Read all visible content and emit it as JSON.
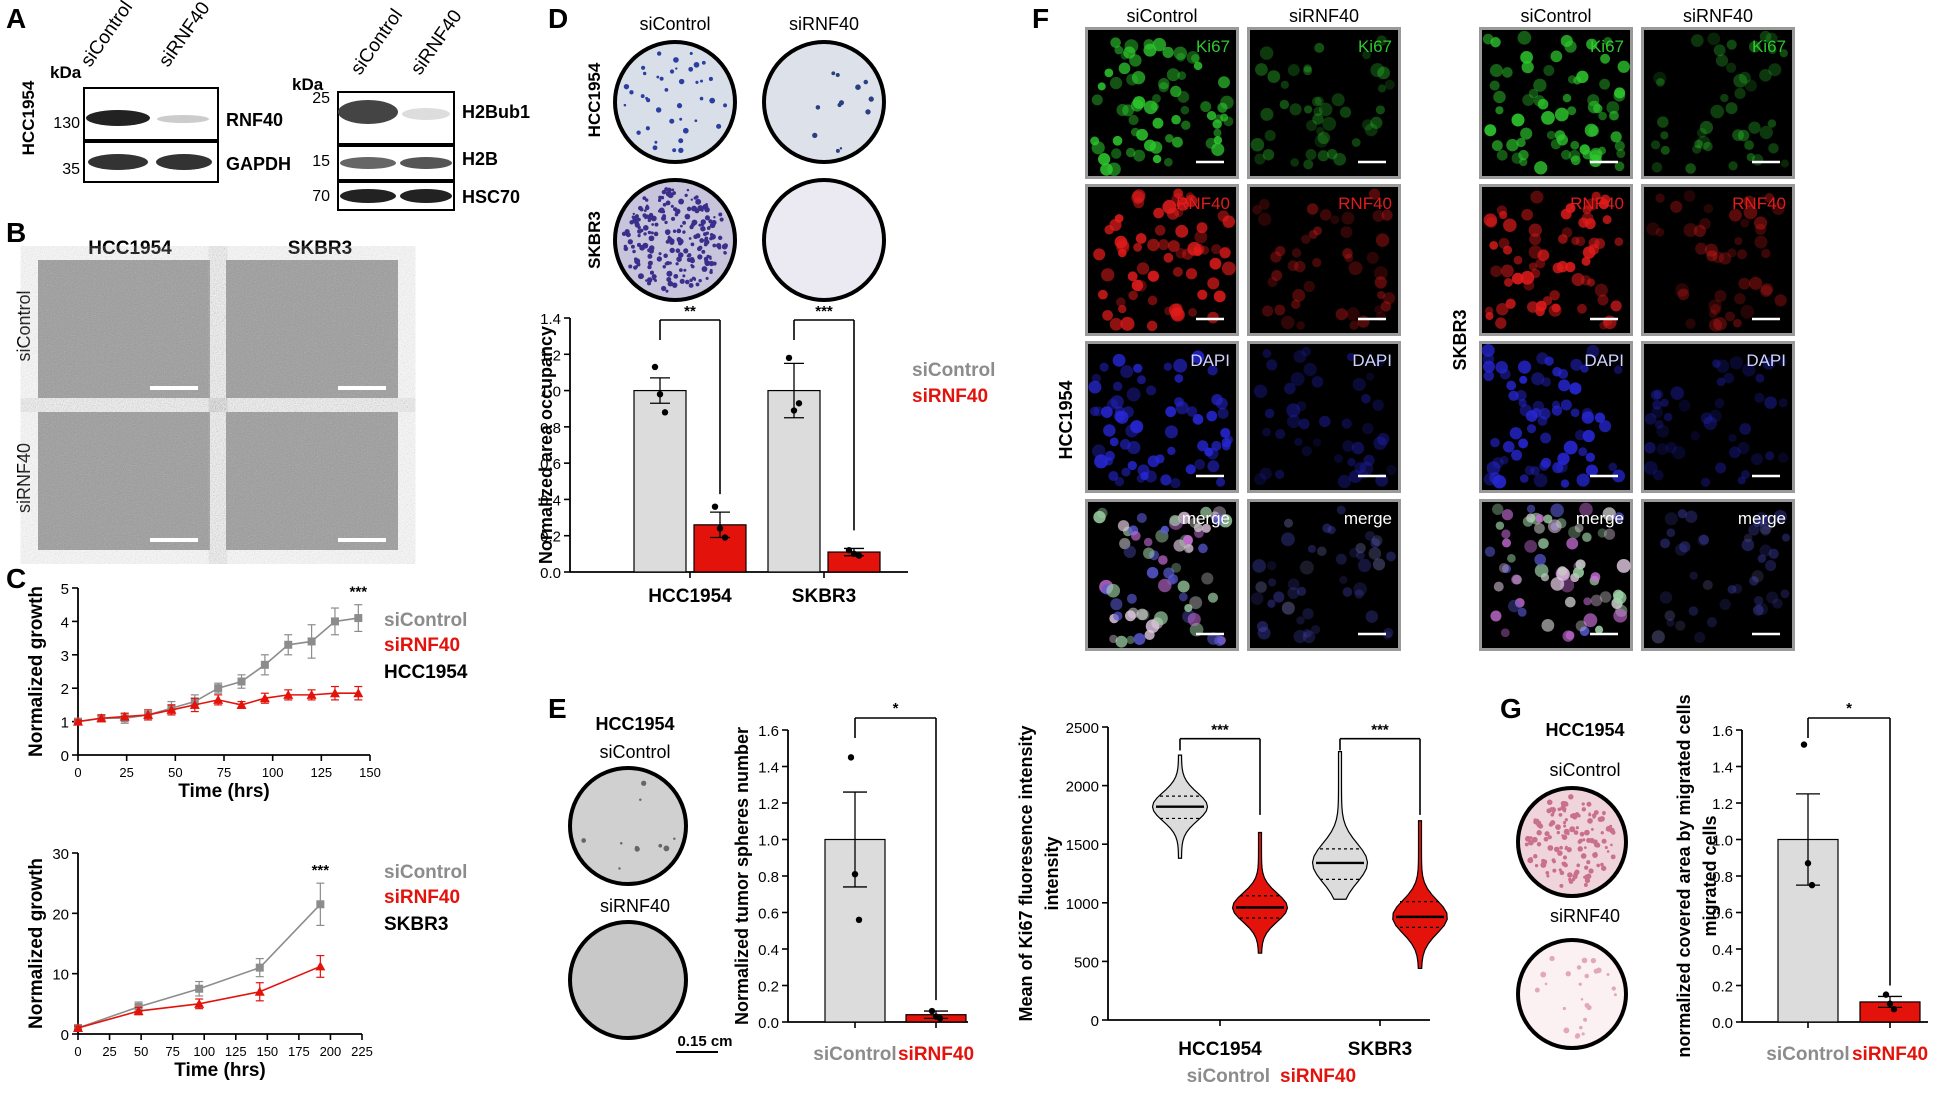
{
  "colors": {
    "control": "#8c8c8c",
    "knock": "#e3120b",
    "bar_control": "#dcdcdc",
    "bar_knock": "#e3120b",
    "ki67": "#2ec82e",
    "rnf40": "#e21b1b",
    "dapi": "#2727d8"
  },
  "panels": {
    "A": "A",
    "B": "B",
    "C": "C",
    "D": "D",
    "E": "E",
    "F": "F",
    "G": "G"
  },
  "A": {
    "lanes": [
      "siControl",
      "siRNF40"
    ],
    "kda": "kDa",
    "cell_line": "HCC1954",
    "blot1": {
      "bands": [
        "RNF40",
        "GAPDH"
      ],
      "markers": [
        "130",
        "35"
      ]
    },
    "blot2": {
      "bands": [
        "H2Bub1",
        "H2B",
        "HSC70"
      ],
      "markers": [
        "25",
        "15",
        "70"
      ]
    }
  },
  "B": {
    "cols": [
      "HCC1954",
      "SKBR3"
    ],
    "rows": [
      "siControl",
      "siRNF40"
    ]
  },
  "D": {
    "cols": [
      "siControl",
      "siRNF40"
    ],
    "rows": [
      "HCC1954",
      "SKBR3"
    ]
  },
  "E": {
    "title": "HCC1954",
    "top": "siControl",
    "bottom": "siRNF40",
    "scale": "0.15 cm"
  },
  "F": {
    "cols": [
      "siControl",
      "siRNF40",
      "siControl",
      "siRNF40"
    ],
    "rows": [
      "Ki67",
      "RNF40",
      "DAPI",
      "merge"
    ],
    "lines": [
      "HCC1954",
      "SKBR3"
    ]
  },
  "G": {
    "title": "HCC1954",
    "top": "siControl",
    "bottom": "siRNF40"
  },
  "chart_data": [
    {
      "id": "C1",
      "type": "line",
      "xlabel": "Time (hrs)",
      "ylabel": "Normalized growth",
      "xlim": [
        0,
        150
      ],
      "ylim": [
        0,
        5
      ],
      "xticks": [
        0,
        25,
        50,
        75,
        100,
        125,
        150
      ],
      "yticks": [
        0,
        1,
        2,
        3,
        4,
        5
      ],
      "legend": [
        "siControl",
        "siRNF40",
        "HCC1954"
      ],
      "annotation": "***",
      "series": [
        {
          "name": "siControl",
          "x": [
            0,
            12,
            24,
            36,
            48,
            60,
            72,
            84,
            96,
            108,
            120,
            132,
            144
          ],
          "y": [
            1.0,
            1.1,
            1.1,
            1.2,
            1.4,
            1.6,
            2.0,
            2.2,
            2.7,
            3.3,
            3.4,
            4.0,
            4.1
          ],
          "err": [
            0.08,
            0.1,
            0.15,
            0.15,
            0.2,
            0.2,
            0.15,
            0.2,
            0.3,
            0.3,
            0.5,
            0.4,
            0.4
          ]
        },
        {
          "name": "siRNF40",
          "x": [
            0,
            12,
            24,
            36,
            48,
            60,
            72,
            84,
            96,
            108,
            120,
            132,
            144
          ],
          "y": [
            1.0,
            1.1,
            1.15,
            1.2,
            1.35,
            1.5,
            1.65,
            1.5,
            1.7,
            1.8,
            1.8,
            1.85,
            1.85
          ],
          "err": [
            0.05,
            0.1,
            0.1,
            0.15,
            0.15,
            0.2,
            0.15,
            0.1,
            0.15,
            0.15,
            0.15,
            0.2,
            0.2
          ]
        }
      ]
    },
    {
      "id": "C2",
      "type": "line",
      "xlabel": "Time (hrs)",
      "ylabel": "Normalized growth",
      "xlim": [
        0,
        225
      ],
      "ylim": [
        0,
        30
      ],
      "xticks": [
        0,
        25,
        50,
        75,
        100,
        125,
        150,
        175,
        200,
        225
      ],
      "yticks": [
        0,
        10,
        20,
        30
      ],
      "legend": [
        "siControl",
        "siRNF40",
        "SKBR3"
      ],
      "annotation": "***",
      "series": [
        {
          "name": "siControl",
          "x": [
            0,
            48,
            96,
            144,
            192
          ],
          "y": [
            1,
            4.5,
            7.5,
            11,
            21.5
          ],
          "err": [
            0.3,
            0.8,
            1.2,
            1.5,
            3.5
          ]
        },
        {
          "name": "siRNF40",
          "x": [
            0,
            48,
            96,
            144,
            192
          ],
          "y": [
            1,
            3.8,
            5,
            7,
            11.2
          ],
          "err": [
            0.3,
            0.6,
            0.8,
            1.5,
            1.8
          ]
        }
      ]
    },
    {
      "id": "D",
      "type": "bar",
      "ylabel": "Normalized area occupancy",
      "ylim": [
        0,
        1.4
      ],
      "yticks": [
        "0.0",
        "0.2",
        "0.4",
        "0.6",
        "0.8",
        "1.0",
        "1.2",
        "1.4"
      ],
      "categories": [
        "HCC1954",
        "SKBR3"
      ],
      "legend": [
        "siControl",
        "siRNF40"
      ],
      "sig": [
        "**",
        "***"
      ],
      "series": [
        {
          "name": "siControl",
          "values": [
            1.0,
            1.0
          ],
          "err": [
            0.07,
            0.15
          ],
          "points": [
            [
              1.13,
              0.98,
              0.88
            ],
            [
              1.18,
              0.89,
              0.93
            ]
          ]
        },
        {
          "name": "siRNF40",
          "values": [
            0.26,
            0.11
          ],
          "err": [
            0.07,
            0.02
          ],
          "points": [
            [
              0.36,
              0.24,
              0.19
            ],
            [
              0.12,
              0.1,
              0.09
            ]
          ]
        }
      ]
    },
    {
      "id": "E",
      "type": "bar",
      "ylabel": "Normalized tumor spheres number",
      "ylim": [
        0,
        1.6
      ],
      "yticks": [
        "0.0",
        "0.2",
        "0.4",
        "0.6",
        "0.8",
        "1.0",
        "1.2",
        "1.4",
        "1.6"
      ],
      "categories": [
        "siControl",
        "siRNF40"
      ],
      "sig": "*",
      "values": [
        1.0,
        0.04
      ],
      "err": [
        0.26,
        0.02
      ],
      "points": [
        [
          1.45,
          0.81,
          0.56
        ],
        [
          0.06,
          0.03,
          0.02
        ]
      ]
    },
    {
      "id": "Ki67",
      "type": "violin",
      "ylabel": "Mean of Ki67  fluoresence intensity",
      "ylim": [
        0,
        2500
      ],
      "yticks": [
        0,
        500,
        1000,
        1500,
        2000,
        2500
      ],
      "categories": [
        "HCC1954",
        "SKBR3"
      ],
      "legend": [
        "siControl",
        "siRNF40"
      ],
      "sig": [
        "***",
        "***"
      ],
      "series": [
        {
          "name": "siControl",
          "median": [
            1820,
            1340
          ],
          "q1": [
            1720,
            1200
          ],
          "q3": [
            1910,
            1460
          ],
          "min": [
            1380,
            1030
          ],
          "max": [
            2260,
            2290
          ]
        },
        {
          "name": "siRNF40",
          "median": [
            960,
            880
          ],
          "q1": [
            870,
            790
          ],
          "q3": [
            1060,
            1010
          ],
          "min": [
            570,
            440
          ],
          "max": [
            1600,
            1700
          ]
        }
      ]
    },
    {
      "id": "G",
      "type": "bar",
      "ylabel": "normalized covered area by migrated cells",
      "ylim": [
        0,
        1.6
      ],
      "yticks": [
        "0.0",
        "0.2",
        "0.4",
        "0.6",
        "0.8",
        "1.0",
        "1.2",
        "1.4",
        "1.6"
      ],
      "categories": [
        "siControl",
        "siRNF40"
      ],
      "sig": "*",
      "values": [
        1.0,
        0.11
      ],
      "err": [
        0.25,
        0.03
      ],
      "points": [
        [
          1.52,
          0.87,
          0.75
        ],
        [
          0.15,
          0.1,
          0.07
        ]
      ]
    }
  ]
}
